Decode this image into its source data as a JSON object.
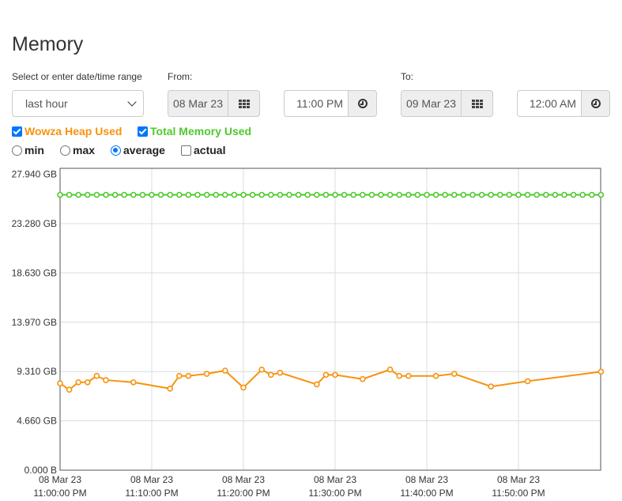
{
  "page": {
    "title": "Memory"
  },
  "range": {
    "label": "Select or enter date/time range",
    "selected": "last hour",
    "from_label": "From:",
    "from_date": "08 Mar 23",
    "from_time": "11:00 PM",
    "to_label": "To:",
    "to_date": "09 Mar 23",
    "to_time": "12:00 AM"
  },
  "series_toggles": [
    {
      "label": "Wowza Heap Used",
      "checked": true,
      "color": "#f7930e"
    },
    {
      "label": "Total Memory Used",
      "checked": true,
      "color": "#4fc92f"
    }
  ],
  "aggregation": {
    "options": [
      {
        "label": "min",
        "type": "radio",
        "checked": false
      },
      {
        "label": "max",
        "type": "radio",
        "checked": false
      },
      {
        "label": "average",
        "type": "radio",
        "checked": true
      },
      {
        "label": "actual",
        "type": "checkbox",
        "checked": false
      }
    ]
  },
  "chart_data": {
    "type": "line",
    "ylim": [
      0,
      28.5
    ],
    "y_ticks": [
      {
        "value": 0,
        "label": "0.000 B"
      },
      {
        "value": 4.66,
        "label": "4.660 GB"
      },
      {
        "value": 9.31,
        "label": "9.310 GB"
      },
      {
        "value": 13.97,
        "label": "13.970 GB"
      },
      {
        "value": 18.63,
        "label": "18.630 GB"
      },
      {
        "value": 23.28,
        "label": "23.280 GB"
      },
      {
        "value": 27.94,
        "label": "27.940 GB"
      }
    ],
    "x_unit": "minutes after 08 Mar 23 11:00:00 PM",
    "xlim": [
      0,
      59
    ],
    "x_ticks": [
      {
        "value": 0,
        "date": "08 Mar 23",
        "time": "11:00:00 PM"
      },
      {
        "value": 10,
        "date": "08 Mar 23",
        "time": "11:10:00 PM"
      },
      {
        "value": 20,
        "date": "08 Mar 23",
        "time": "11:20:00 PM"
      },
      {
        "value": 30,
        "date": "08 Mar 23",
        "time": "11:30:00 PM"
      },
      {
        "value": 40,
        "date": "08 Mar 23",
        "time": "11:40:00 PM"
      },
      {
        "value": 50,
        "date": "08 Mar 23",
        "time": "11:50:00 PM"
      }
    ],
    "grid": true,
    "legend": "none",
    "series": [
      {
        "name": "Total Memory Used",
        "color": "#4fc92f",
        "x": [
          0,
          1,
          2,
          3,
          4,
          5,
          6,
          7,
          8,
          9,
          10,
          11,
          12,
          13,
          14,
          15,
          16,
          17,
          18,
          19,
          20,
          21,
          22,
          23,
          24,
          25,
          26,
          27,
          28,
          29,
          30,
          31,
          32,
          33,
          34,
          35,
          36,
          37,
          38,
          39,
          40,
          41,
          42,
          43,
          44,
          45,
          46,
          47,
          48,
          49,
          50,
          51,
          52,
          53,
          54,
          55,
          56,
          57,
          58,
          59
        ],
        "y": [
          26.0,
          26.0,
          26.0,
          26.0,
          26.0,
          26.0,
          26.0,
          26.0,
          26.0,
          26.0,
          26.0,
          26.0,
          26.0,
          26.0,
          26.0,
          26.0,
          26.0,
          26.0,
          26.0,
          26.0,
          26.0,
          26.0,
          26.0,
          26.0,
          26.0,
          26.0,
          26.0,
          26.0,
          26.0,
          26.0,
          26.0,
          26.0,
          26.0,
          26.0,
          26.0,
          26.0,
          26.0,
          26.0,
          26.0,
          26.0,
          26.0,
          26.0,
          26.0,
          26.0,
          26.0,
          26.0,
          26.0,
          26.0,
          26.0,
          26.0,
          26.0,
          26.0,
          26.0,
          26.0,
          26.0,
          26.0,
          26.0,
          26.0,
          26.0,
          26.0
        ]
      },
      {
        "name": "Wowza Heap Used",
        "color": "#f7930e",
        "x": [
          0,
          1,
          2,
          3,
          4,
          5,
          8,
          12,
          13,
          14,
          16,
          18,
          20,
          22,
          23,
          24,
          28,
          29,
          30,
          33,
          36,
          37,
          38,
          41,
          43,
          47,
          51,
          59
        ],
        "y": [
          8.2,
          7.6,
          8.3,
          8.3,
          8.9,
          8.5,
          8.3,
          7.7,
          8.9,
          8.9,
          9.1,
          9.4,
          7.8,
          9.5,
          9.0,
          9.2,
          8.1,
          9.0,
          9.0,
          8.6,
          9.5,
          8.9,
          8.9,
          8.9,
          9.1,
          7.9,
          8.4,
          9.3
        ]
      }
    ]
  }
}
